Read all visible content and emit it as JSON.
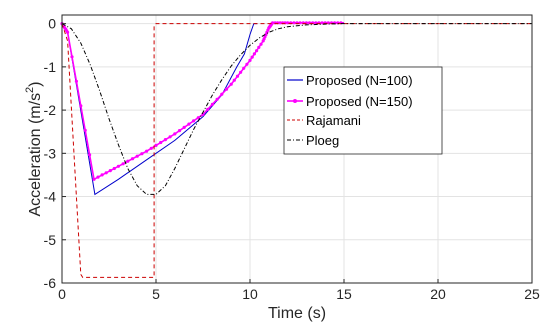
{
  "chart_data": {
    "type": "line",
    "xlabel": "Time (s)",
    "ylabel_main": "Acceleration (m/s",
    "ylabel_sup": "2",
    "ylabel_close": ")",
    "xlim": [
      0,
      25
    ],
    "ylim": [
      -6,
      0.2
    ],
    "xticks": [
      "0",
      "5",
      "10",
      "15",
      "20",
      "25"
    ],
    "yticks": [
      "0",
      "-1",
      "-2",
      "-3",
      "-4",
      "-5",
      "-6"
    ],
    "grid": true,
    "legend_position": "center-right",
    "series": [
      {
        "name": "Proposed (N=100)",
        "color": "#0000cc",
        "dash": "solid",
        "marker": "none",
        "x": [
          0,
          0.3,
          1.75,
          3,
          4.5,
          6,
          7.5,
          8.5,
          9.3,
          9.7,
          10.0,
          10.2,
          10.3,
          10.4
        ],
        "y": [
          0,
          -0.2,
          -3.95,
          -3.6,
          -3.15,
          -2.7,
          -2.15,
          -1.65,
          -1.0,
          -0.7,
          -0.25,
          0,
          0,
          0
        ]
      },
      {
        "name": "Proposed (N=150)",
        "color": "#ff00ff",
        "dash": "solid",
        "marker": "dot",
        "x": [
          0,
          0.3,
          1.7,
          3,
          4.5,
          6,
          7.5,
          9,
          10,
          10.7,
          11.0,
          11.2,
          12,
          13,
          14,
          15
        ],
        "y": [
          0,
          -0.2,
          -3.6,
          -3.3,
          -2.95,
          -2.55,
          -2.1,
          -1.4,
          -0.85,
          -0.4,
          -0.1,
          0.02,
          0.02,
          0.02,
          0.02,
          0.02
        ]
      },
      {
        "name": "Rajamani",
        "color": "#cc0000",
        "dash": "dashed",
        "marker": "none",
        "x": [
          0,
          0.3,
          1.0,
          1.1,
          4.9,
          4.9,
          5.0,
          25
        ],
        "y": [
          0,
          -0.4,
          -5.8,
          -5.87,
          -5.87,
          -0.05,
          0,
          0
        ]
      },
      {
        "name": "Ploeg",
        "color": "#000000",
        "dash": "dashdot",
        "marker": "none",
        "x": [
          0,
          0.5,
          1,
          1.5,
          2,
          2.5,
          3,
          3.5,
          4,
          4.5,
          5,
          5.5,
          6,
          6.5,
          7,
          7.5,
          8,
          8.5,
          9,
          9.5,
          10,
          10.5,
          11,
          11.5,
          12,
          13,
          14,
          15,
          25
        ],
        "y": [
          0,
          -0.12,
          -0.45,
          -0.95,
          -1.55,
          -2.2,
          -2.8,
          -3.35,
          -3.75,
          -3.95,
          -3.95,
          -3.75,
          -3.35,
          -2.9,
          -2.45,
          -2.05,
          -1.65,
          -1.3,
          -0.98,
          -0.72,
          -0.5,
          -0.33,
          -0.2,
          -0.12,
          -0.07,
          -0.03,
          -0.01,
          0,
          0
        ]
      }
    ]
  }
}
